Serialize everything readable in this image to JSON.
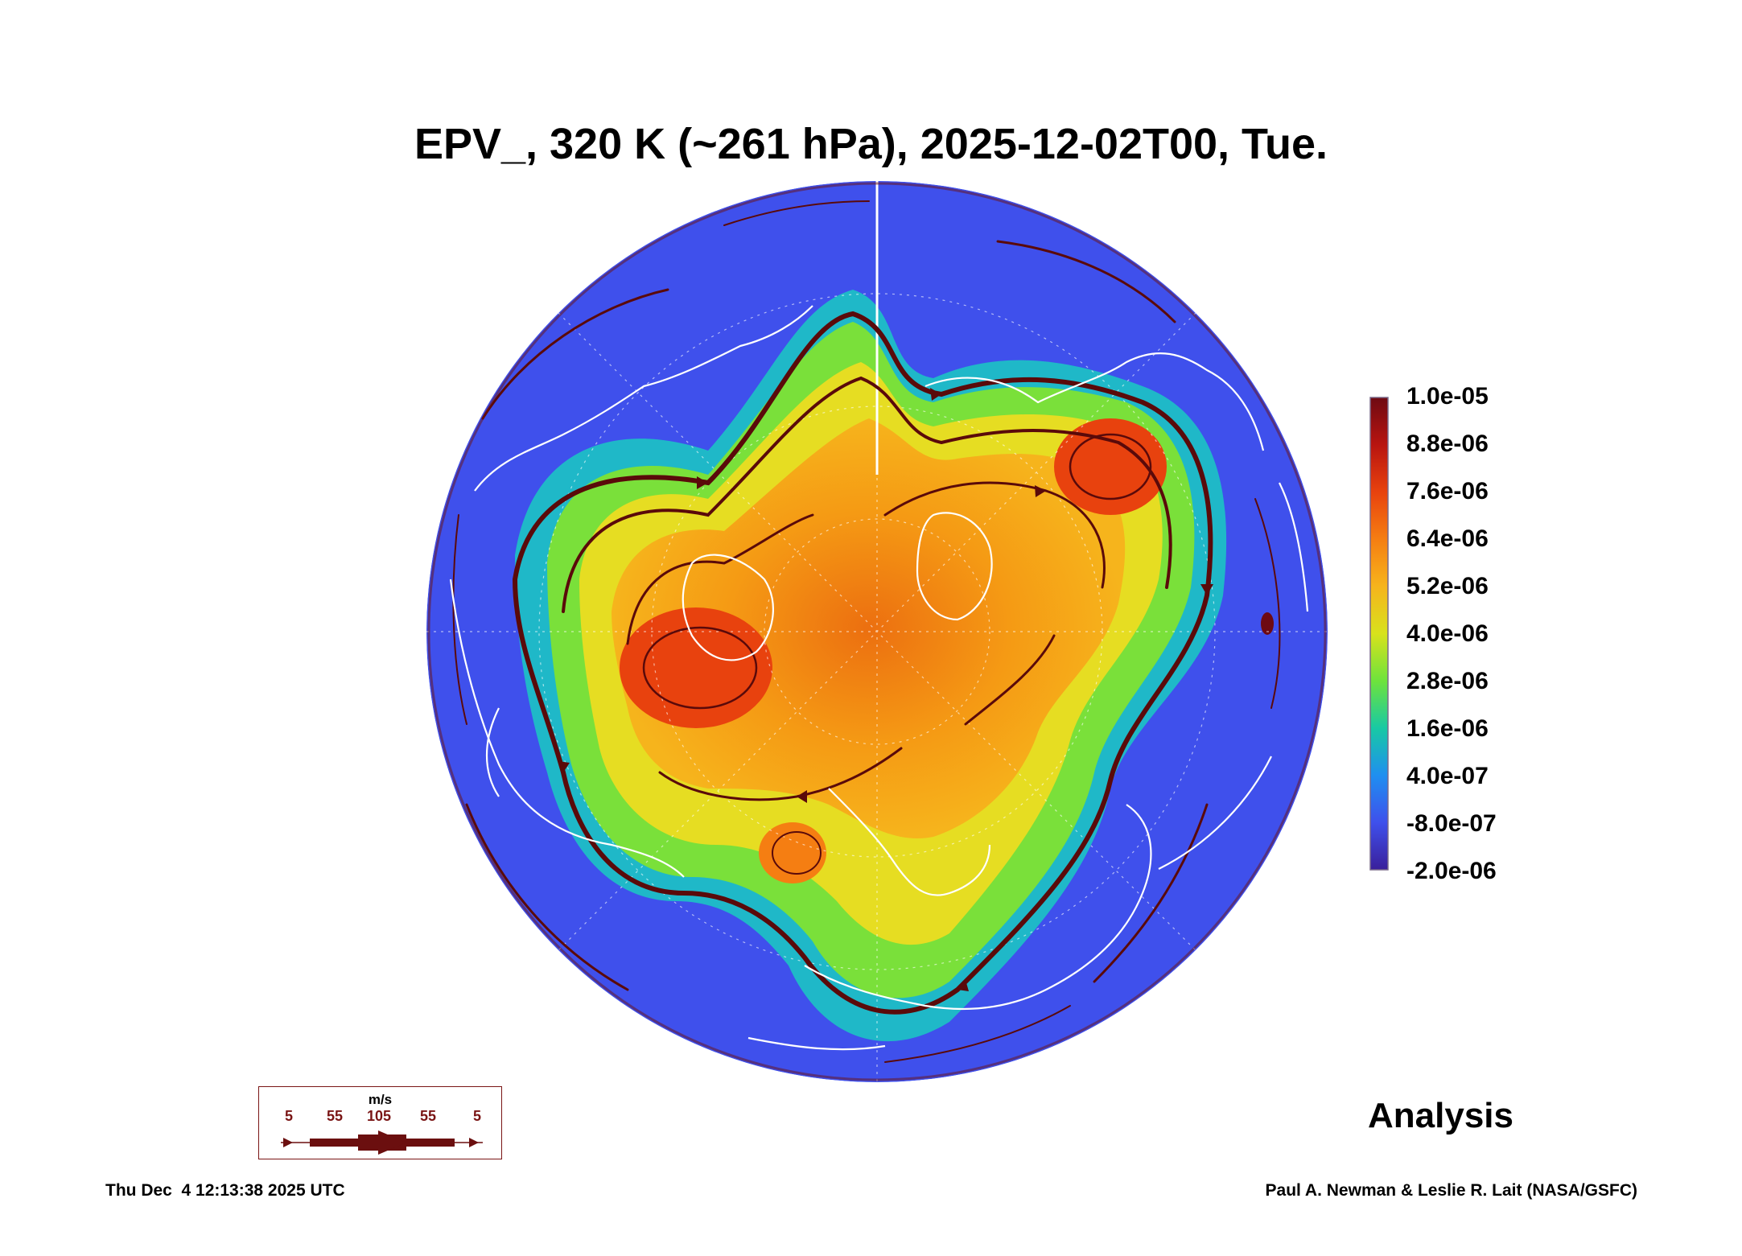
{
  "title": "EPV_, 320 K (~261 hPa), 2025-12-02T00, Tue.",
  "colorbar": {
    "ticks": [
      "1.0e-05",
      "8.8e-06",
      "7.6e-06",
      "6.4e-06",
      "5.2e-06",
      "4.0e-06",
      "2.8e-06",
      "1.6e-06",
      "4.0e-07",
      "-8.0e-07",
      "-2.0e-06"
    ],
    "colors": [
      "#6e0a12",
      "#b81410",
      "#e8420e",
      "#f57e12",
      "#f6b41c",
      "#d8e21c",
      "#6ee33c",
      "#18c9a4",
      "#1f8ff0",
      "#3f50ec",
      "#3a1f9a"
    ]
  },
  "wind_legend": {
    "unit": "m/s",
    "speeds": [
      "5",
      "55",
      "105",
      "55",
      "5"
    ],
    "color": "#6b0f0f"
  },
  "label": "Analysis",
  "footer": {
    "timestamp": "Thu Dec  4 12:13:38 2025 UTC",
    "credit": "Paul A. Newman & Leslie R. Lait (NASA/GSFC)"
  },
  "map": {
    "background_color": "#3f50ec",
    "coast_color": "#ffffff",
    "streamline_color": "#5a0a0a"
  }
}
